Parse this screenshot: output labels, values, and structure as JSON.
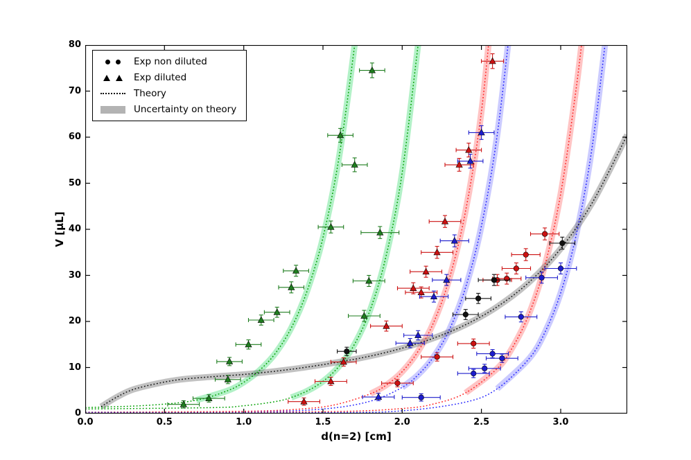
{
  "chart_data": {
    "type": "scatter",
    "title": "",
    "xlabel": "d(n=2) [cm]",
    "ylabel": "V [µL]",
    "xlim": [
      0,
      3.42
    ],
    "ylim": [
      0,
      80
    ],
    "grid": false,
    "legend_position": "upper-left",
    "legend": [
      "Exp non diluted",
      "Exp diluted",
      "Theory",
      "Uncertainty on theory"
    ],
    "xticks": {
      "values": [
        0,
        0.5,
        1.0,
        1.5,
        2.0,
        2.5,
        3.0
      ],
      "labels": [
        "0.0",
        "0.5",
        "1.0",
        "1.5",
        "2.0",
        "2.5",
        "3.0"
      ]
    },
    "yticks": {
      "values": [
        0,
        10,
        20,
        30,
        40,
        50,
        60,
        70,
        80
      ],
      "labels": [
        "0",
        "10",
        "20",
        "30",
        "40",
        "50",
        "60",
        "70",
        "80"
      ]
    },
    "colors": {
      "green_line": "#00a000",
      "red_line": "#ff2222",
      "blue_line": "#2222ff",
      "black_line": "#111111",
      "green_band": "rgba(0,210,70,0.30)",
      "red_band": "rgba(255,60,60,0.30)",
      "blue_band": "rgba(70,70,255,0.28)",
      "gray_band": "rgba(110,110,110,0.42)"
    },
    "theory_curves": [
      {
        "name": "green-steep-1",
        "line_color": "#00a000",
        "band_color": "rgba(0,210,70,0.30)",
        "band_min_y": 2.8,
        "points": [
          [
            0,
            1.3
          ],
          [
            0.4,
            1.8
          ],
          [
            0.7,
            2.9
          ],
          [
            0.9,
            5.0
          ],
          [
            1.0,
            6.8
          ],
          [
            1.1,
            9.4
          ],
          [
            1.2,
            13.1
          ],
          [
            1.3,
            18.6
          ],
          [
            1.4,
            26.6
          ],
          [
            1.5,
            38.2
          ],
          [
            1.6,
            55.3
          ],
          [
            1.7,
            80
          ],
          [
            1.74,
            93
          ]
        ]
      },
      {
        "name": "green-steep-2",
        "line_color": "#00a000",
        "band_color": "rgba(0,210,70,0.30)",
        "band_min_y": 2.8,
        "points": [
          [
            0,
            1.0
          ],
          [
            0.8,
            1.3
          ],
          [
            1.0,
            1.7
          ],
          [
            1.2,
            2.6
          ],
          [
            1.3,
            3.5
          ],
          [
            1.4,
            4.9
          ],
          [
            1.5,
            7.0
          ],
          [
            1.6,
            10.2
          ],
          [
            1.7,
            15.1
          ],
          [
            1.8,
            22.7
          ],
          [
            1.9,
            34.4
          ],
          [
            2.0,
            52.3
          ],
          [
            2.1,
            80
          ],
          [
            2.14,
            92
          ]
        ]
      },
      {
        "name": "red-steep-1",
        "line_color": "#ff2222",
        "band_color": "rgba(255,60,60,0.30)",
        "band_min_y": 2.8,
        "points": [
          [
            0,
            0.3
          ],
          [
            1.0,
            0.5
          ],
          [
            1.4,
            1.1
          ],
          [
            1.6,
            2.1
          ],
          [
            1.8,
            4.3
          ],
          [
            1.9,
            6.2
          ],
          [
            2.0,
            9.1
          ],
          [
            2.1,
            13.5
          ],
          [
            2.2,
            19.9
          ],
          [
            2.3,
            29.6
          ],
          [
            2.4,
            44.0
          ],
          [
            2.5,
            65.5
          ],
          [
            2.58,
            93
          ]
        ]
      },
      {
        "name": "blue-steep-1",
        "line_color": "#2222ff",
        "band_color": "rgba(70,70,255,0.28)",
        "band_min_y": 2.8,
        "points": [
          [
            0,
            0.25
          ],
          [
            1.0,
            0.35
          ],
          [
            1.5,
            1.0
          ],
          [
            1.8,
            2.7
          ],
          [
            2.0,
            5.7
          ],
          [
            2.1,
            8.4
          ],
          [
            2.2,
            12.4
          ],
          [
            2.3,
            18.4
          ],
          [
            2.4,
            27.4
          ],
          [
            2.5,
            40.7
          ],
          [
            2.6,
            60.6
          ],
          [
            2.7,
            90
          ]
        ]
      },
      {
        "name": "red-steep-2",
        "line_color": "#ff2222",
        "band_color": "rgba(255,60,60,0.30)",
        "band_min_y": 2.8,
        "points": [
          [
            0,
            0.2
          ],
          [
            1.5,
            0.4
          ],
          [
            2.0,
            1.1
          ],
          [
            2.2,
            2.1
          ],
          [
            2.4,
            4.5
          ],
          [
            2.6,
            9.8
          ],
          [
            2.7,
            14.6
          ],
          [
            2.8,
            21.6
          ],
          [
            2.9,
            32.1
          ],
          [
            3.0,
            47.7
          ],
          [
            3.1,
            71.1
          ],
          [
            3.16,
            89
          ]
        ]
      },
      {
        "name": "blue-steep-2",
        "line_color": "#2222ff",
        "band_color": "rgba(70,70,255,0.28)",
        "band_min_y": 2.8,
        "points": [
          [
            0,
            0.15
          ],
          [
            1.5,
            0.2
          ],
          [
            2.0,
            0.6
          ],
          [
            2.4,
            2.5
          ],
          [
            2.6,
            5.4
          ],
          [
            2.8,
            11.9
          ],
          [
            2.9,
            17.6
          ],
          [
            3.0,
            26.2
          ],
          [
            3.1,
            39.1
          ],
          [
            3.2,
            58.2
          ],
          [
            3.3,
            86
          ]
        ]
      },
      {
        "name": "black-flat",
        "line_color": "#111111",
        "band_color": "rgba(110,110,110,0.42)",
        "band_min_y": 0,
        "points": [
          [
            0.1,
            1.5
          ],
          [
            0.2,
            3.6
          ],
          [
            0.3,
            5.2
          ],
          [
            0.45,
            6.5
          ],
          [
            0.6,
            7.4
          ],
          [
            0.8,
            8.0
          ],
          [
            1.0,
            8.5
          ],
          [
            1.2,
            9.2
          ],
          [
            1.4,
            10.1
          ],
          [
            1.6,
            11.2
          ],
          [
            1.8,
            12.5
          ],
          [
            2.0,
            14.2
          ],
          [
            2.2,
            16.4
          ],
          [
            2.4,
            19.3
          ],
          [
            2.6,
            23.2
          ],
          [
            2.8,
            28.5
          ],
          [
            3.0,
            35.8
          ],
          [
            3.2,
            45.8
          ],
          [
            3.42,
            60.5
          ]
        ]
      }
    ],
    "scatter_series": [
      {
        "name": "exp-diluted-green",
        "marker": "triangle",
        "marker_color": "#1e7d1e",
        "points": [
          [
            0.62,
            2.0,
            0.1,
            0.8
          ],
          [
            0.78,
            3.3,
            0.1,
            0.8
          ],
          [
            0.9,
            7.4,
            0.08,
            0.9
          ],
          [
            0.91,
            11.3,
            0.08,
            0.9
          ],
          [
            1.03,
            15.0,
            0.08,
            1.0
          ],
          [
            1.11,
            20.3,
            0.08,
            1.1
          ],
          [
            1.21,
            22.0,
            0.08,
            1.1
          ],
          [
            1.3,
            27.4,
            0.08,
            1.2
          ],
          [
            1.33,
            31.0,
            0.08,
            1.2
          ],
          [
            1.55,
            40.5,
            0.08,
            1.3
          ],
          [
            1.61,
            60.4,
            0.08,
            1.5
          ],
          [
            1.7,
            54.0,
            0.08,
            1.5
          ],
          [
            1.81,
            74.5,
            0.08,
            1.6
          ],
          [
            1.76,
            21.2,
            0.1,
            1.2
          ],
          [
            1.79,
            28.8,
            0.1,
            1.2
          ],
          [
            1.86,
            39.3,
            0.12,
            1.3
          ]
        ]
      },
      {
        "name": "exp-diluted-red",
        "marker": "triangle",
        "marker_color": "#cc1111",
        "points": [
          [
            1.38,
            2.6,
            0.1,
            0.8
          ],
          [
            1.55,
            7.0,
            0.1,
            0.9
          ],
          [
            1.63,
            11.2,
            0.08,
            0.9
          ],
          [
            1.9,
            19.0,
            0.1,
            1.1
          ],
          [
            2.07,
            27.2,
            0.1,
            1.2
          ],
          [
            2.12,
            26.3,
            0.1,
            1.2
          ],
          [
            2.15,
            30.8,
            0.1,
            1.2
          ],
          [
            2.22,
            35.0,
            0.1,
            1.3
          ],
          [
            2.27,
            41.7,
            0.1,
            1.3
          ],
          [
            2.36,
            54.0,
            0.09,
            1.4
          ],
          [
            2.42,
            57.2,
            0.08,
            1.5
          ],
          [
            2.57,
            76.5,
            0.07,
            1.6
          ]
        ]
      },
      {
        "name": "exp-diluted-blue",
        "marker": "triangle",
        "marker_color": "#1c1ccc",
        "points": [
          [
            1.85,
            3.6,
            0.1,
            0.8
          ],
          [
            2.05,
            15.3,
            0.09,
            1.0
          ],
          [
            2.1,
            17.0,
            0.09,
            1.0
          ],
          [
            2.2,
            25.4,
            0.09,
            1.2
          ],
          [
            2.28,
            29.0,
            0.09,
            1.2
          ],
          [
            2.33,
            37.5,
            0.09,
            1.3
          ],
          [
            2.43,
            54.8,
            0.08,
            1.5
          ],
          [
            2.5,
            61.0,
            0.08,
            1.5
          ]
        ]
      },
      {
        "name": "exp-non-diluted-red",
        "marker": "circle",
        "marker_color": "#cc1111",
        "points": [
          [
            1.97,
            6.6,
            0.1,
            0.8
          ],
          [
            2.22,
            12.3,
            0.1,
            0.9
          ],
          [
            2.45,
            15.2,
            0.1,
            1.0
          ],
          [
            2.6,
            29.0,
            0.09,
            1.2
          ],
          [
            2.66,
            29.3,
            0.09,
            1.2
          ],
          [
            2.72,
            31.5,
            0.09,
            1.2
          ],
          [
            2.78,
            34.5,
            0.09,
            1.3
          ],
          [
            2.9,
            39.0,
            0.09,
            1.3
          ]
        ]
      },
      {
        "name": "exp-non-diluted-blue",
        "marker": "circle",
        "marker_color": "#1c1ccc",
        "points": [
          [
            2.12,
            3.5,
            0.12,
            0.8
          ],
          [
            2.45,
            8.7,
            0.1,
            0.9
          ],
          [
            2.52,
            9.8,
            0.1,
            0.9
          ],
          [
            2.57,
            13.0,
            0.1,
            0.9
          ],
          [
            2.63,
            12.0,
            0.1,
            0.9
          ],
          [
            2.75,
            21.0,
            0.1,
            1.1
          ],
          [
            2.88,
            29.5,
            0.1,
            1.2
          ],
          [
            3.0,
            31.5,
            0.1,
            1.2
          ]
        ]
      },
      {
        "name": "exp-non-diluted-black",
        "marker": "circle",
        "marker_color": "#111111",
        "points": [
          [
            1.65,
            13.5,
            0.06,
            0.9
          ],
          [
            2.4,
            21.5,
            0.08,
            1.1
          ],
          [
            2.48,
            25.0,
            0.08,
            1.1
          ],
          [
            2.58,
            29.0,
            0.1,
            1.2
          ],
          [
            3.01,
            37.0,
            0.08,
            1.3
          ]
        ]
      }
    ]
  }
}
